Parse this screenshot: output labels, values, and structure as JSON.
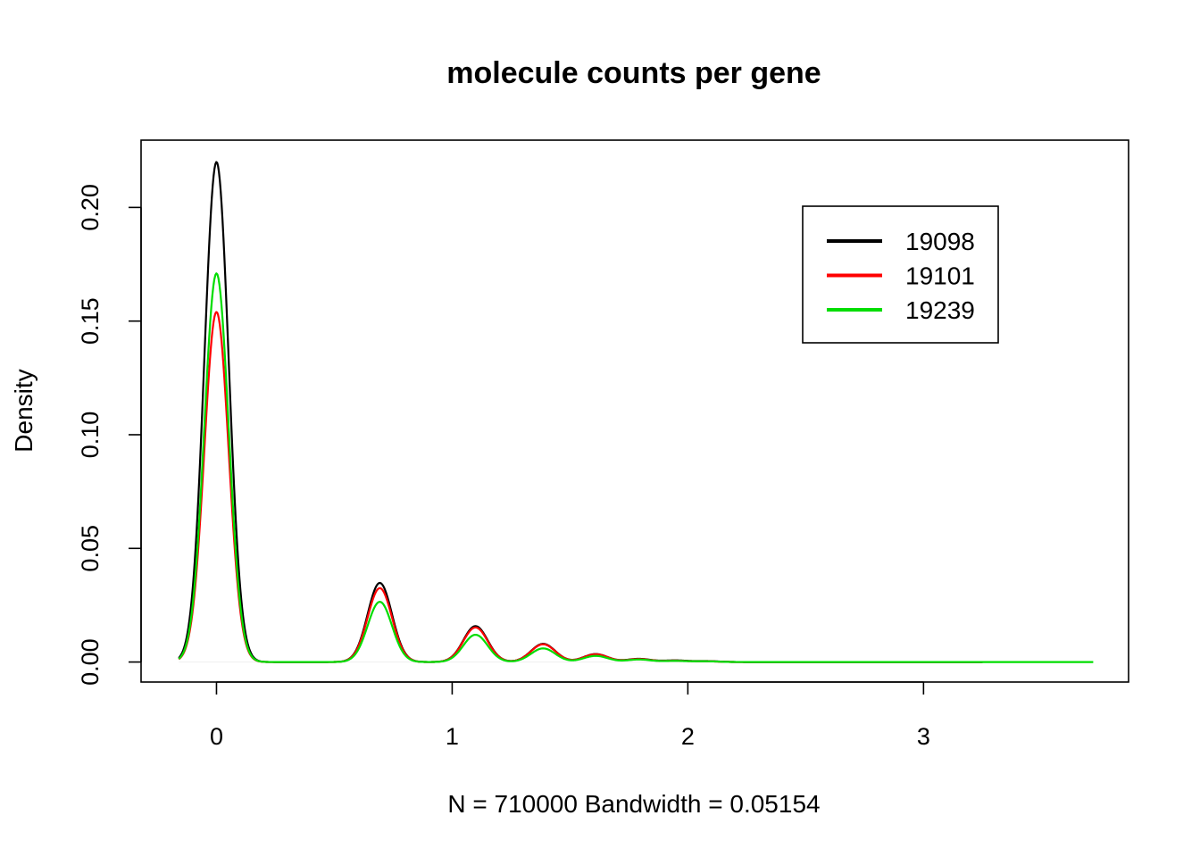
{
  "chart_data": {
    "type": "line",
    "title": "molecule counts per gene",
    "xlabel": "N = 710000   Bandwidth = 0.05154",
    "ylabel": "Density",
    "xlim": [
      -0.32,
      3.87
    ],
    "ylim": [
      -0.0088,
      0.2296
    ],
    "x_ticks": [
      0,
      1,
      2,
      3
    ],
    "x_tick_labels": [
      "0",
      "1",
      "2",
      "3"
    ],
    "y_ticks": [
      0.0,
      0.05,
      0.1,
      0.15,
      0.2
    ],
    "y_tick_labels": [
      "0.00",
      "0.05",
      "0.10",
      "0.15",
      "0.20"
    ],
    "grid": false,
    "legend_position": "top-right",
    "series": [
      {
        "name": "19098",
        "color": "#000000",
        "x_range": [
          -0.16,
          3.25
        ],
        "peaks": [
          {
            "x": 0.0,
            "y": 0.22
          },
          {
            "x": 0.693,
            "y": 0.0348
          },
          {
            "x": 1.099,
            "y": 0.0158
          },
          {
            "x": 1.386,
            "y": 0.008
          },
          {
            "x": 1.609,
            "y": 0.0035
          },
          {
            "x": 1.792,
            "y": 0.0014
          },
          {
            "x": 1.946,
            "y": 0.0007
          },
          {
            "x": 2.079,
            "y": 0.0004
          }
        ]
      },
      {
        "name": "19101",
        "color": "#ff0000",
        "x_range": [
          -0.16,
          3.25
        ],
        "peaks": [
          {
            "x": 0.0,
            "y": 0.154
          },
          {
            "x": 0.693,
            "y": 0.0325
          },
          {
            "x": 1.099,
            "y": 0.0152
          },
          {
            "x": 1.386,
            "y": 0.0078
          },
          {
            "x": 1.609,
            "y": 0.0034
          },
          {
            "x": 1.792,
            "y": 0.0013
          },
          {
            "x": 1.946,
            "y": 0.0006
          },
          {
            "x": 2.079,
            "y": 0.0003
          }
        ]
      },
      {
        "name": "19239",
        "color": "#00dd00",
        "x_range": [
          -0.16,
          3.72
        ],
        "peaks": [
          {
            "x": 0.0,
            "y": 0.171
          },
          {
            "x": 0.693,
            "y": 0.0265
          },
          {
            "x": 1.099,
            "y": 0.012
          },
          {
            "x": 1.386,
            "y": 0.006
          },
          {
            "x": 1.609,
            "y": 0.0027
          },
          {
            "x": 1.792,
            "y": 0.0011
          },
          {
            "x": 1.946,
            "y": 0.0005
          },
          {
            "x": 2.079,
            "y": 0.0003
          }
        ]
      }
    ],
    "bandwidth": 0.05154
  }
}
